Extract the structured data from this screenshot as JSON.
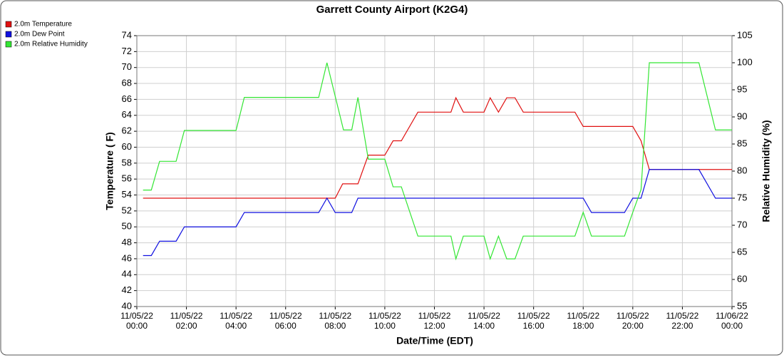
{
  "chart_data": {
    "type": "line",
    "title": "Garrett County Airport (K2G4)",
    "xlabel": "Date/Time (EDT)",
    "ylabel": "Temperature ( F)",
    "y2label": "Relative Humidity (%)",
    "xlim": [
      "11/05/22 00:00",
      "11/06/22 00:00"
    ],
    "xticks": [
      "11/05/22 00:00",
      "11/05/22 02:00",
      "11/05/22 04:00",
      "11/05/22 06:00",
      "11/05/22 08:00",
      "11/05/22 10:00",
      "11/05/22 12:00",
      "11/05/22 14:00",
      "11/05/22 16:00",
      "11/05/22 18:00",
      "11/05/22 20:00",
      "11/05/22 22:00",
      "11/06/22 00:00"
    ],
    "ylim": [
      40,
      74
    ],
    "yticks": [
      40,
      42,
      44,
      46,
      48,
      50,
      52,
      54,
      56,
      58,
      60,
      62,
      64,
      66,
      68,
      70,
      72,
      74
    ],
    "y2lim": [
      55,
      105
    ],
    "y2ticks": [
      55,
      60,
      65,
      70,
      75,
      80,
      85,
      90,
      95,
      100,
      105
    ],
    "grid": true,
    "legend": "top-left",
    "series": [
      {
        "name": "2.0m Temperature",
        "color": "#e01010",
        "x": [
          "11/05/22 00:15",
          "11/05/22 08:00",
          "11/05/22 08:18",
          "11/05/22 08:55",
          "11/05/22 09:20",
          "11/05/22 10:00",
          "11/05/22 10:20",
          "11/05/22 10:40",
          "11/05/22 11:20",
          "11/05/22 12:40",
          "11/05/22 12:52",
          "11/05/22 13:10",
          "11/05/22 14:00",
          "11/05/22 14:15",
          "11/05/22 14:35",
          "11/05/22 14:55",
          "11/05/22 15:15",
          "11/05/22 15:35",
          "11/05/22 17:40",
          "11/05/22 18:00",
          "11/05/22 20:00",
          "11/05/22 20:20",
          "11/05/22 20:40",
          "11/06/22 00:00"
        ],
        "values": [
          53.6,
          53.6,
          55.4,
          55.4,
          59.0,
          59.0,
          60.8,
          60.8,
          64.4,
          64.4,
          66.2,
          64.4,
          64.4,
          66.2,
          64.4,
          66.2,
          66.2,
          64.4,
          64.4,
          62.6,
          62.6,
          60.8,
          57.2,
          57.2
        ]
      },
      {
        "name": "2.0m Dew Point",
        "color": "#1010e0",
        "x": [
          "11/05/22 00:15",
          "11/05/22 00:35",
          "11/05/22 00:55",
          "11/05/22 01:35",
          "11/05/22 01:55",
          "11/05/22 04:00",
          "11/05/22 04:20",
          "11/05/22 07:20",
          "11/05/22 07:40",
          "11/05/22 08:00",
          "11/05/22 08:40",
          "11/05/22 08:55",
          "11/05/22 18:00",
          "11/05/22 18:20",
          "11/05/22 19:40",
          "11/05/22 20:00",
          "11/05/22 20:20",
          "11/05/22 20:40",
          "11/05/22 22:40",
          "11/05/22 23:20",
          "11/06/22 00:00"
        ],
        "values": [
          46.4,
          46.4,
          48.2,
          48.2,
          50.0,
          50.0,
          51.8,
          51.8,
          53.6,
          51.8,
          51.8,
          53.6,
          53.6,
          51.8,
          51.8,
          53.6,
          53.6,
          57.2,
          57.2,
          53.6,
          53.6
        ]
      },
      {
        "name": "2.0m Relative Humidity",
        "color": "#33e633",
        "axis": "y2",
        "x": [
          "11/05/22 00:15",
          "11/05/22 00:35",
          "11/05/22 00:55",
          "11/05/22 01:35",
          "11/05/22 01:55",
          "11/05/22 04:00",
          "11/05/22 04:20",
          "11/05/22 07:20",
          "11/05/22 07:40",
          "11/05/22 08:20",
          "11/05/22 08:40",
          "11/05/22 08:55",
          "11/05/22 09:20",
          "11/05/22 10:00",
          "11/05/22 10:20",
          "11/05/22 10:40",
          "11/05/22 11:20",
          "11/05/22 12:40",
          "11/05/22 12:52",
          "11/05/22 13:10",
          "11/05/22 14:00",
          "11/05/22 14:15",
          "11/05/22 14:35",
          "11/05/22 14:55",
          "11/05/22 15:15",
          "11/05/22 15:35",
          "11/05/22 17:40",
          "11/05/22 18:00",
          "11/05/22 18:20",
          "11/05/22 19:40",
          "11/05/22 20:00",
          "11/05/22 20:20",
          "11/05/22 20:40",
          "11/05/22 22:40",
          "11/05/22 23:20",
          "11/06/22 00:00"
        ],
        "values": [
          76.5,
          76.5,
          81.8,
          81.8,
          87.5,
          87.5,
          93.6,
          93.6,
          100,
          87.6,
          87.6,
          93.6,
          82.2,
          82.2,
          77.1,
          77.1,
          68.0,
          68.0,
          63.8,
          68.0,
          68.0,
          63.8,
          68.0,
          63.8,
          63.8,
          68.0,
          68.0,
          72.4,
          68.0,
          68.0,
          72.4,
          76.6,
          100,
          100,
          87.6,
          87.6
        ]
      }
    ]
  }
}
